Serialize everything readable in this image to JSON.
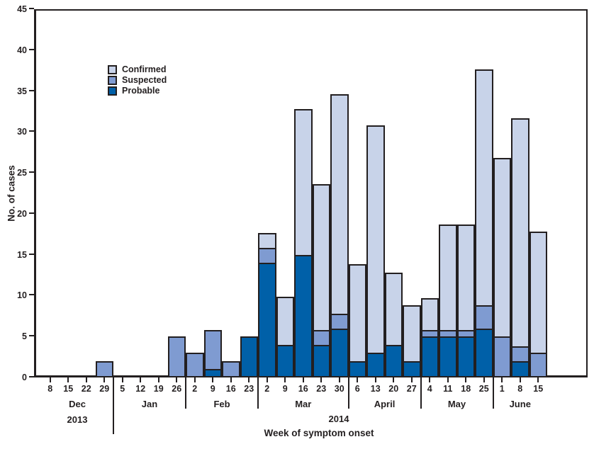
{
  "chart_data": {
    "type": "bar",
    "stacked": true,
    "title": "",
    "xlabel": "Week of symptom onset",
    "ylabel": "No. of cases",
    "ylim": [
      0,
      45
    ],
    "yticks": [
      0,
      5,
      10,
      15,
      20,
      25,
      30,
      35,
      40,
      45
    ],
    "grid": false,
    "legend_position": "upper-left-inside",
    "years": [
      "2013",
      "2014"
    ],
    "legend": [
      {
        "name": "Confirmed",
        "color": "#C8D3E9"
      },
      {
        "name": "Suspected",
        "color": "#7F9BD1"
      },
      {
        "name": "Probable",
        "color": "#0060A8"
      }
    ],
    "months": [
      {
        "label": "Dec",
        "year": "2013",
        "ticks": [
          "8",
          "15",
          "22",
          "29"
        ]
      },
      {
        "label": "Jan",
        "year": "2014",
        "ticks": [
          "5",
          "12",
          "19",
          "26"
        ]
      },
      {
        "label": "Feb",
        "year": "2014",
        "ticks": [
          "2",
          "9",
          "16",
          "23"
        ]
      },
      {
        "label": "Mar",
        "year": "2014",
        "ticks": [
          "2",
          "9",
          "16",
          "23",
          "30"
        ]
      },
      {
        "label": "April",
        "year": "2014",
        "ticks": [
          "6",
          "13",
          "20",
          "27"
        ]
      },
      {
        "label": "May",
        "year": "2014",
        "ticks": [
          "4",
          "11",
          "18",
          "25"
        ]
      },
      {
        "label": "June",
        "year": "2014",
        "ticks": [
          "1",
          "8",
          "15"
        ]
      }
    ],
    "categories": [
      "Dec 8",
      "Dec 15",
      "Dec 22",
      "Dec 29",
      "Jan 5",
      "Jan 12",
      "Jan 19",
      "Jan 26",
      "Feb 2",
      "Feb 9",
      "Feb 16",
      "Feb 23",
      "Mar 2",
      "Mar 9",
      "Mar 16",
      "Mar 23",
      "Mar 30",
      "Apr 6",
      "Apr 13",
      "Apr 20",
      "Apr 27",
      "May 4",
      "May 11",
      "May 18",
      "May 25",
      "Jun 1",
      "Jun 8",
      "Jun 15"
    ],
    "series": [
      {
        "name": "Probable",
        "values": [
          0,
          0,
          0,
          0,
          0,
          0,
          0,
          0,
          0,
          1,
          0,
          5,
          14,
          4,
          15,
          4,
          6,
          2,
          3,
          4,
          2,
          5,
          5,
          5,
          6,
          0,
          2,
          0
        ]
      },
      {
        "name": "Suspected",
        "values": [
          0,
          0,
          0,
          2,
          0,
          0,
          0,
          5,
          3,
          5,
          2,
          0,
          2,
          0,
          0,
          2,
          2,
          0,
          0,
          0,
          0,
          1,
          1,
          1,
          3,
          5,
          2,
          3
        ]
      },
      {
        "name": "Confirmed",
        "values": [
          0,
          0,
          0,
          0,
          0,
          0,
          0,
          0,
          0,
          0,
          0,
          0,
          2,
          6,
          18,
          18,
          27,
          12,
          28,
          9,
          7,
          4,
          13,
          13,
          29,
          22,
          28,
          15
        ]
      }
    ],
    "totals": [
      0,
      0,
      0,
      2,
      0,
      0,
      0,
      5,
      3,
      6,
      2,
      5,
      18,
      10,
      33,
      24,
      35,
      14,
      31,
      13,
      9,
      10,
      19,
      19,
      38,
      27,
      32,
      18
    ]
  },
  "colors": {
    "axis": "#231F20",
    "text": "#231F20",
    "background": "#ffffff"
  }
}
